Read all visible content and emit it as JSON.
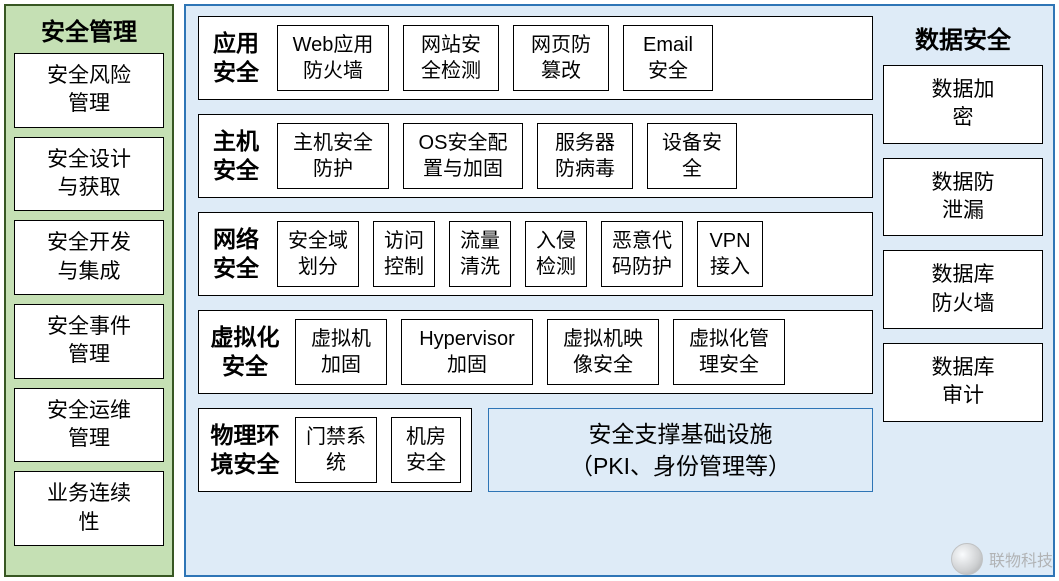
{
  "colors": {
    "left_bg": "#c5e0b4",
    "left_border": "#385723",
    "main_bg": "#deebf7",
    "main_border": "#2e75b6",
    "box_bg": "#ffffff",
    "box_border": "#000000",
    "text": "#000000",
    "watermark_text": "#aaaaaa"
  },
  "typography": {
    "title_fontsize": 24,
    "row_title_fontsize": 23,
    "cell_fontsize": 20,
    "font_family": "Microsoft YaHei"
  },
  "left": {
    "title": "安全管理",
    "items": [
      "安全风险管理",
      "安全设计与获取",
      "安全开发与集成",
      "安全事件管理",
      "安全运维管理",
      "业务连续性"
    ]
  },
  "center": {
    "rows": [
      {
        "title": "应用\n安全",
        "title_width": 54,
        "items": [
          {
            "t": "Web应用\n防火墙",
            "w": 112
          },
          {
            "t": "网站安\n全检测",
            "w": 96
          },
          {
            "t": "网页防\n篡改",
            "w": 96
          },
          {
            "t": "Email\n安全",
            "w": 90
          }
        ]
      },
      {
        "title": "主机\n安全",
        "title_width": 54,
        "items": [
          {
            "t": "主机安全\n防护",
            "w": 112
          },
          {
            "t": "OS安全配\n置与加固",
            "w": 120
          },
          {
            "t": "服务器\n防病毒",
            "w": 96
          },
          {
            "t": "设备安\n全",
            "w": 90
          }
        ]
      },
      {
        "title": "网络\n安全",
        "title_width": 54,
        "items": [
          {
            "t": "安全域\n划分",
            "w": 82
          },
          {
            "t": "访问\n控制",
            "w": 62
          },
          {
            "t": "流量\n清洗",
            "w": 62
          },
          {
            "t": "入侵\n检测",
            "w": 62
          },
          {
            "t": "恶意代\n码防护",
            "w": 82
          },
          {
            "t": "VPN\n接入",
            "w": 66
          }
        ]
      },
      {
        "title": "虚拟化\n安全",
        "title_width": 72,
        "items": [
          {
            "t": "虚拟机\n加固",
            "w": 92
          },
          {
            "t": "Hypervisor\n加固",
            "w": 132
          },
          {
            "t": "虚拟机映\n像安全",
            "w": 112
          },
          {
            "t": "虚拟化管\n理安全",
            "w": 112
          }
        ]
      }
    ],
    "bottom": {
      "title": "物理环\n境安全",
      "title_width": 72,
      "items": [
        {
          "t": "门禁系\n统",
          "w": 82
        },
        {
          "t": "机房\n安全",
          "w": 70
        }
      ],
      "infra_line1": "安全支撑基础设施",
      "infra_line2": "（PKI、身份管理等）"
    }
  },
  "right": {
    "title": "数据安全",
    "items": [
      "数据加密",
      "数据防泄漏",
      "数据库防火墙",
      "数据库审计"
    ]
  },
  "watermark": "联物科技"
}
